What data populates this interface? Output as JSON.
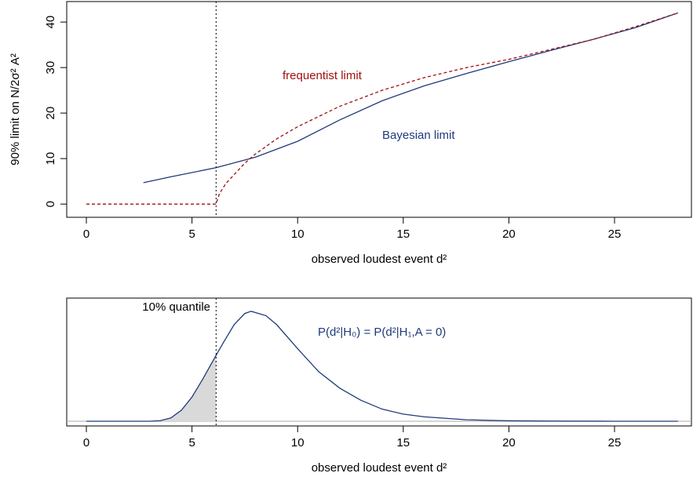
{
  "chart_data": [
    {
      "type": "line",
      "xlabel": "observed loudest event d²",
      "ylabel": "90% limit on N/2σ² A²",
      "xlim": [
        -0.93,
        28.64
      ],
      "ylim": [
        -2.9,
        44.5
      ],
      "xticks": [
        0,
        5,
        10,
        15,
        20,
        25
      ],
      "yticks": [
        0,
        10,
        20,
        30,
        40
      ],
      "vline": 6.14,
      "annotations": [
        {
          "text": "frequentist limit",
          "color": "#a01010"
        },
        {
          "text": "Bayesian limit",
          "color": "#1f3a7a"
        }
      ],
      "series": [
        {
          "name": "Bayesian limit",
          "color": "#1f3a7a",
          "dash": false,
          "x": [
            2.7,
            4,
            6.14,
            8,
            10,
            12,
            14,
            16,
            18,
            20,
            22,
            24,
            26,
            28
          ],
          "values": [
            4.7,
            6,
            8,
            10.3,
            13.8,
            18.5,
            22.7,
            26,
            28.7,
            31.3,
            33.8,
            36.2,
            38.8,
            42
          ]
        },
        {
          "name": "frequentist limit",
          "color": "#a01010",
          "dash": true,
          "x": [
            0,
            2,
            4,
            6.14,
            6.3,
            6.6,
            7,
            7.5,
            8,
            9,
            10,
            12,
            14,
            16,
            18,
            20,
            22,
            24,
            26,
            28
          ],
          "values": [
            0,
            0,
            0,
            0,
            2.3,
            4.5,
            6.5,
            9,
            11,
            14.3,
            17,
            21.5,
            25,
            27.8,
            30,
            31.8,
            34,
            36.2,
            39,
            42
          ]
        }
      ]
    },
    {
      "type": "density",
      "xlabel": "observed loudest event d²",
      "xlim": [
        -0.93,
        28.64
      ],
      "ylim": [
        -0.043,
        1.12
      ],
      "xticks": [
        0,
        5,
        10,
        15,
        20,
        25
      ],
      "vline": 6.14,
      "annotations": [
        {
          "text": "10% quantile",
          "color": "#000000"
        },
        {
          "text": "P(d²|H₀) = P(d²|H₁,A = 0)",
          "color": "#1f3a7a"
        }
      ],
      "series": [
        {
          "name": "P(d²|H₀)",
          "color": "#1f3a7a",
          "fill": "#d9d9d9",
          "x": [
            0,
            2,
            3,
            3.5,
            4,
            4.5,
            5,
            5.5,
            6.14,
            6.5,
            7,
            7.5,
            7.8,
            8.5,
            9,
            10,
            11,
            12,
            13,
            14,
            15,
            16,
            18,
            20,
            22,
            25,
            28
          ],
          "values": [
            0,
            0,
            0,
            0.005,
            0.03,
            0.1,
            0.22,
            0.38,
            0.6,
            0.72,
            0.88,
            0.98,
            1,
            0.96,
            0.88,
            0.66,
            0.45,
            0.3,
            0.19,
            0.11,
            0.065,
            0.04,
            0.013,
            0.004,
            0.001,
            0,
            0
          ]
        }
      ]
    }
  ]
}
